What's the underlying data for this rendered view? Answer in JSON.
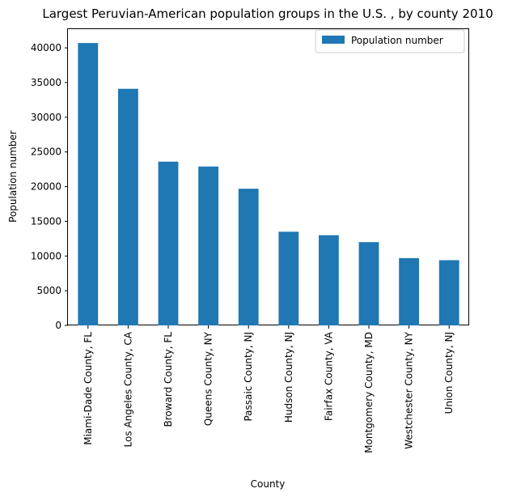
{
  "chart_data": {
    "type": "bar",
    "title": "Largest Peruvian-American population groups in the U.S. , by county 2010",
    "xlabel": "County",
    "ylabel": "Population number",
    "categories": [
      "Miami-Dade County, FL",
      "Los Angeles County, CA",
      "Broward County, FL",
      "Queens County, NY",
      "Passaic County, NJ",
      "Hudson County, NJ",
      "Fairfax County, VA",
      "Montgomery County, MD",
      "Westchester County, NY",
      "Union County, NJ"
    ],
    "series": [
      {
        "name": "Population number",
        "color": "#1f77b4",
        "values": [
          40700,
          34100,
          23600,
          22900,
          19700,
          13500,
          13000,
          12000,
          9700,
          9400
        ]
      }
    ],
    "ylim": [
      0,
      42700
    ],
    "yticks": [
      0,
      5000,
      10000,
      15000,
      20000,
      25000,
      30000,
      35000,
      40000
    ],
    "legend": "top-right",
    "grid": false
  }
}
